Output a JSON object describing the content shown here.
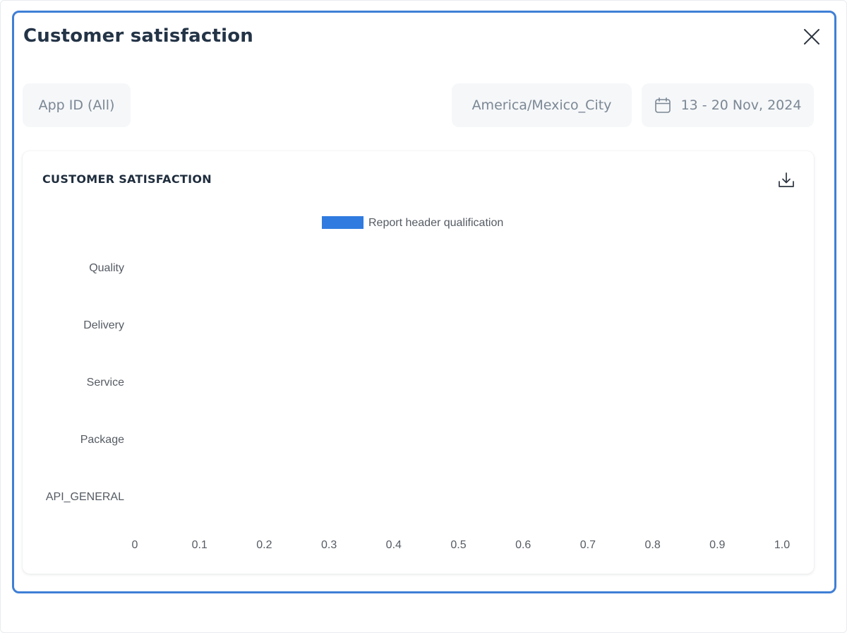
{
  "modal": {
    "title": "Customer satisfaction"
  },
  "filters": {
    "app_id": "App ID (All)",
    "timezone": "America/Mexico_City",
    "date_range": "13 - 20 Nov, 2024"
  },
  "icons": {
    "close": "close-icon",
    "calendar": "calendar-icon",
    "download": "download-icon"
  },
  "colors": {
    "accent": "#3f7fd6",
    "series": "#2f7be0"
  },
  "chart_data": {
    "type": "bar",
    "orientation": "horizontal",
    "title": "CUSTOMER SATISFACTION",
    "categories": [
      "Quality",
      "Delivery",
      "Service",
      "Package",
      "API_GENERAL"
    ],
    "series": [
      {
        "name": "Report header qualification",
        "values": [
          0,
          0,
          0,
          0,
          0
        ]
      }
    ],
    "x_ticks": [
      "0",
      "0.1",
      "0.2",
      "0.3",
      "0.4",
      "0.5",
      "0.6",
      "0.7",
      "0.8",
      "0.9",
      "1.0"
    ],
    "xlim": [
      0,
      1
    ],
    "grid": false,
    "legend": "top-center"
  }
}
